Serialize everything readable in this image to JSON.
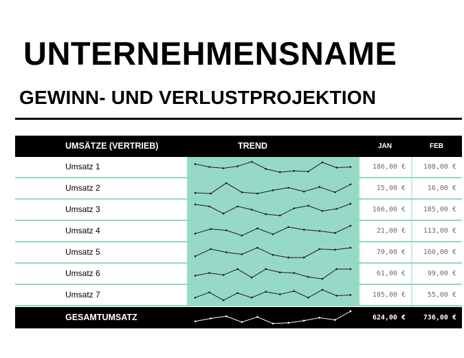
{
  "company_name": "UNTERNEHMENSNAME",
  "subtitle": "GEWINN- UND VERLUSTPROJEKTION",
  "table": {
    "headers": {
      "sales": "UMSÄTZE (VERTRIEB)",
      "trend": "TREND",
      "jan": "JAN",
      "feb": "FEB"
    },
    "colors": {
      "header_bg": "#000000",
      "trend_bg": "#96d9c6",
      "row_divider": "#8fd8c5"
    },
    "rows": [
      {
        "label": "Umsatz 1",
        "jan": "186,00 €",
        "feb": "108,00 €",
        "trend": [
          0.72,
          0.5,
          0.4,
          0.55,
          0.9,
          0.35,
          0.1,
          0.2,
          0.15,
          0.85,
          0.45,
          0.5
        ]
      },
      {
        "label": "Umsatz 2",
        "jan": "15,00 €",
        "feb": "16,00 €",
        "trend": [
          0.15,
          0.1,
          0.9,
          0.2,
          0.1,
          0.35,
          0.55,
          0.25,
          0.6,
          0.2,
          0.8
        ]
      },
      {
        "label": "Umsatz 3",
        "jan": "166,00 €",
        "feb": "185,00 €",
        "trend": [
          0.9,
          0.75,
          0.2,
          0.75,
          0.5,
          0.15,
          0.05,
          0.6,
          0.8,
          0.4,
          0.55,
          0.95
        ]
      },
      {
        "label": "Umsatz 4",
        "jan": "21,00 €",
        "feb": "113,00 €",
        "trend": [
          0.3,
          0.65,
          0.55,
          0.15,
          0.7,
          0.25,
          0.8,
          0.6,
          0.5,
          0.35,
          0.9
        ]
      },
      {
        "label": "Umsatz 5",
        "jan": "70,00 €",
        "feb": "160,00 €",
        "trend": [
          0.2,
          0.75,
          0.5,
          0.35,
          0.85,
          0.3,
          0.1,
          0.1,
          0.75,
          0.7,
          0.85
        ]
      },
      {
        "label": "Umsatz 6",
        "jan": "61,00 €",
        "feb": "99,00 €",
        "trend": [
          0.35,
          0.55,
          0.4,
          0.85,
          0.2,
          0.85,
          0.6,
          0.55,
          0.25,
          0.1,
          0.85,
          0.85
        ]
      },
      {
        "label": "Umsatz 7",
        "jan": "105,00 €",
        "feb": "55,00 €",
        "trend": [
          0.3,
          0.7,
          0.1,
          0.65,
          0.3,
          0.75,
          0.55,
          0.8,
          0.3,
          0.9,
          0.45,
          0.5
        ]
      }
    ],
    "total": {
      "label": "GESAMTUMSATZ",
      "jan": "624,00 €",
      "feb": "736,00 €",
      "trend": [
        0.25,
        0.45,
        0.6,
        0.2,
        0.55,
        0.1,
        0.15,
        0.3,
        0.5,
        0.35,
        0.95
      ]
    }
  }
}
